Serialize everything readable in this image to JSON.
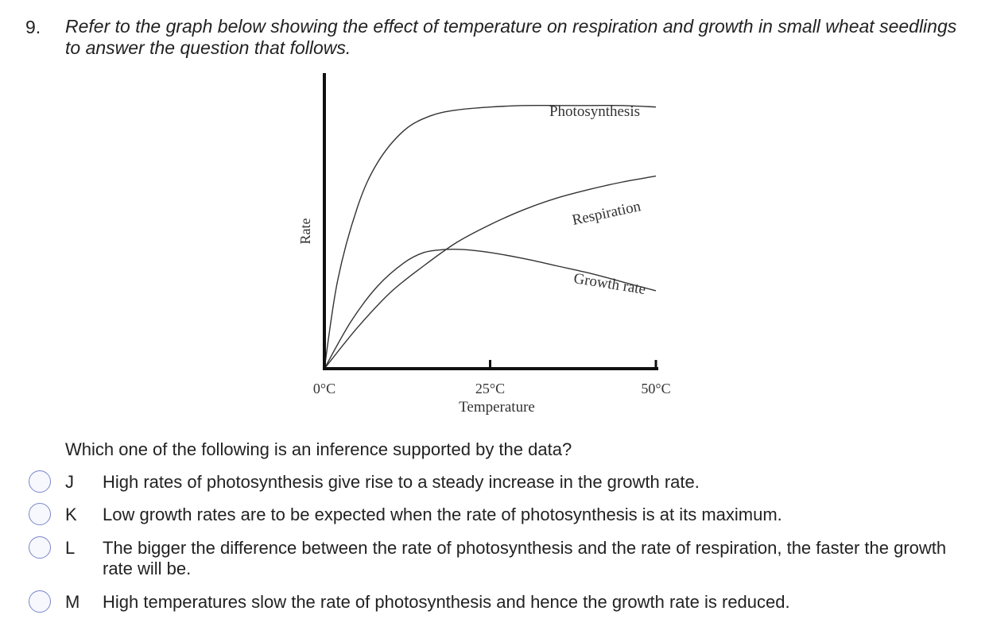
{
  "question": {
    "number": "9.",
    "prompt": "Refer to the graph below showing the effect of temperature on respiration and growth in small wheat seedlings to answer the question that follows.",
    "stem": "Which one of the following is an inference supported by the data?"
  },
  "options": [
    {
      "letter": "J",
      "text": "High rates of photosynthesis give rise to a steady increase in the growth rate."
    },
    {
      "letter": "K",
      "text": "Low growth rates are to be expected when the rate of photosynthesis is at its maximum."
    },
    {
      "letter": "L",
      "text": "The bigger the difference between the rate of photosynthesis and the rate of respiration, the faster the growth rate will be."
    },
    {
      "letter": "M",
      "text": "High temperatures slow the rate of photosynthesis and hence the growth rate is reduced."
    }
  ],
  "colors": {
    "radio_border": "#7a86c8",
    "curve": "#333333",
    "axis": "#111111"
  },
  "chart_data": {
    "type": "line",
    "xlabel": "Temperature",
    "ylabel": "Rate",
    "xlim": [
      0,
      50
    ],
    "ylim": [
      0,
      100
    ],
    "xticks": [
      {
        "value": 0,
        "label": "0°C"
      },
      {
        "value": 25,
        "label": "25°C"
      },
      {
        "value": 50,
        "label": "50°C"
      }
    ],
    "grid": false,
    "series": [
      {
        "name": "Photosynthesis",
        "x": [
          0,
          2,
          5,
          8,
          12,
          16,
          20,
          25,
          30,
          35,
          40,
          45,
          50
        ],
        "y": [
          0,
          30,
          55,
          70,
          81,
          86,
          88,
          89,
          89.5,
          89.5,
          89.5,
          89.5,
          89
        ]
      },
      {
        "name": "Respiration",
        "x": [
          0,
          5,
          10,
          15,
          20,
          25,
          30,
          35,
          40,
          45,
          50
        ],
        "y": [
          0,
          14,
          26,
          35,
          43,
          49,
          54,
          58,
          61,
          63.5,
          65.5
        ]
      },
      {
        "name": "Growth rate",
        "x": [
          0,
          4,
          8,
          12,
          15,
          18,
          21,
          25,
          30,
          35,
          40,
          45,
          50
        ],
        "y": [
          0,
          16,
          28,
          36,
          39.5,
          40.5,
          40.5,
          39.5,
          37.5,
          35,
          32.5,
          29.5,
          26.5
        ]
      }
    ]
  }
}
